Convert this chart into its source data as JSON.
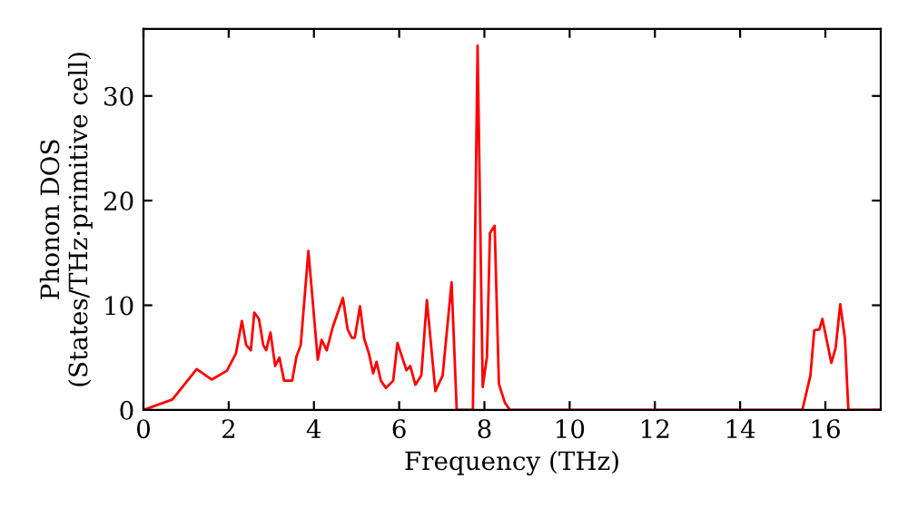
{
  "chart_data": {
    "type": "line",
    "xlabel": "Frequency (THz)",
    "ylabel": "Phonon DOS\n(States/THz·primitive cell)",
    "x": [
      0,
      0.68,
      1.25,
      1.6,
      1.96,
      2.17,
      2.31,
      2.41,
      2.52,
      2.6,
      2.71,
      2.81,
      2.88,
      2.98,
      3.09,
      3.19,
      3.3,
      3.49,
      3.59,
      3.69,
      3.87,
      4.09,
      4.18,
      4.3,
      4.44,
      4.68,
      4.79,
      4.89,
      4.96,
      5.08,
      5.18,
      5.29,
      5.39,
      5.47,
      5.57,
      5.69,
      5.86,
      5.96,
      6.17,
      6.26,
      6.38,
      6.52,
      6.65,
      6.85,
      7.02,
      7.23,
      7.35,
      7.73,
      7.84,
      7.96,
      8.06,
      8.13,
      8.24,
      8.34,
      8.48,
      8.6,
      15.46,
      15.65,
      15.74,
      15.86,
      15.93,
      16.14,
      16.24,
      16.35,
      16.46,
      16.54,
      17.3
    ],
    "series": [
      {
        "color": "#ff0000",
        "values": [
          0,
          1.0,
          3.9,
          2.9,
          3.75,
          5.4,
          8.5,
          6.2,
          5.7,
          9.3,
          8.7,
          6.2,
          5.7,
          7.4,
          4.2,
          5.0,
          2.8,
          2.8,
          5.1,
          6.2,
          15.2,
          4.8,
          6.7,
          5.7,
          7.9,
          10.7,
          7.7,
          6.9,
          6.9,
          9.9,
          6.8,
          5.4,
          3.5,
          4.6,
          2.8,
          2.1,
          2.8,
          6.4,
          3.8,
          4.2,
          2.4,
          3.3,
          10.5,
          1.8,
          3.3,
          12.2,
          0,
          0,
          34.8,
          2.2,
          5.1,
          16.9,
          17.6,
          2.5,
          0.7,
          0,
          0,
          3.3,
          7.6,
          7.7,
          8.7,
          4.5,
          5.9,
          10.1,
          6.8,
          0,
          0
        ]
      }
    ],
    "xlim": [
      0,
      17.3
    ],
    "ylim": [
      0,
      36.4
    ],
    "xticks": [
      0,
      2,
      4,
      6,
      8,
      10,
      12,
      14,
      16
    ],
    "yticks": [
      0,
      10,
      20,
      30
    ],
    "grid": false,
    "legend": false,
    "marker": "none",
    "line_style": "solid"
  }
}
